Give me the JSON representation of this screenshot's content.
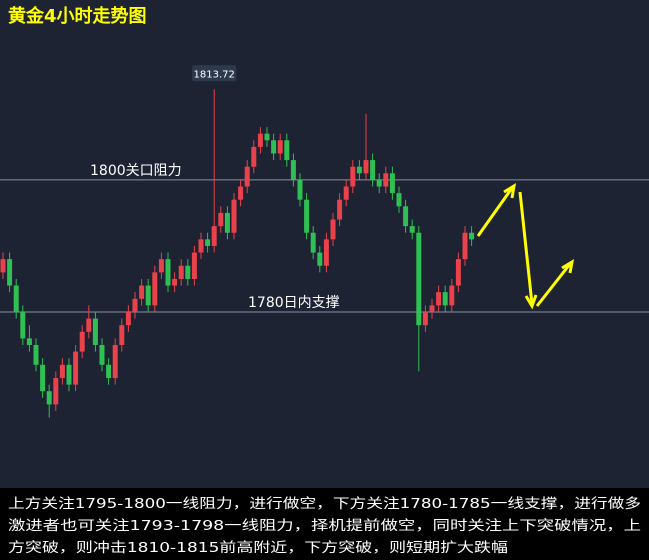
{
  "chart_data": {
    "type": "candlestick",
    "title": "黄金4小时走势图",
    "ylim": [
      1753.8,
      1822.7
    ],
    "up_color": "#e9424a",
    "down_color": "#2fbf52",
    "candles": [
      [
        1786,
        1789,
        1785,
        1788
      ],
      [
        1788,
        1789,
        1783,
        1784
      ],
      [
        1784,
        1785,
        1779,
        1780
      ],
      [
        1780,
        1781,
        1775,
        1776
      ],
      [
        1776,
        1778,
        1774,
        1775
      ],
      [
        1775,
        1776,
        1771,
        1772
      ],
      [
        1772,
        1773,
        1767,
        1768
      ],
      [
        1768,
        1769,
        1764,
        1766
      ],
      [
        1766,
        1771,
        1765,
        1770
      ],
      [
        1770,
        1773,
        1769,
        1772
      ],
      [
        1772,
        1773,
        1768,
        1769
      ],
      [
        1769,
        1775,
        1768,
        1774
      ],
      [
        1774,
        1778,
        1773,
        1777
      ],
      [
        1777,
        1781,
        1776,
        1779
      ],
      [
        1779,
        1780,
        1774,
        1775
      ],
      [
        1775,
        1776,
        1771,
        1772
      ],
      [
        1772,
        1773,
        1769,
        1770
      ],
      [
        1770,
        1776,
        1769,
        1775
      ],
      [
        1775,
        1779,
        1774,
        1778
      ],
      [
        1778,
        1781,
        1777,
        1780
      ],
      [
        1780,
        1783,
        1779,
        1782
      ],
      [
        1782,
        1785,
        1781,
        1784
      ],
      [
        1784,
        1785,
        1780,
        1781
      ],
      [
        1781,
        1787,
        1780,
        1786
      ],
      [
        1786,
        1789,
        1785,
        1788
      ],
      [
        1788,
        1789,
        1783,
        1784
      ],
      [
        1784,
        1786,
        1783,
        1785
      ],
      [
        1785,
        1788,
        1784,
        1787
      ],
      [
        1787,
        1788,
        1784,
        1785
      ],
      [
        1785,
        1790,
        1784,
        1789
      ],
      [
        1789,
        1792,
        1788,
        1791
      ],
      [
        1791,
        1792,
        1789,
        1790
      ],
      [
        1790,
        1813.72,
        1789,
        1793
      ],
      [
        1793,
        1796,
        1792,
        1795
      ],
      [
        1795,
        1796,
        1791,
        1792
      ],
      [
        1792,
        1798,
        1791,
        1797
      ],
      [
        1797,
        1800,
        1796,
        1799
      ],
      [
        1799,
        1803,
        1798,
        1802
      ],
      [
        1802,
        1806,
        1801,
        1805
      ],
      [
        1805,
        1808,
        1804,
        1807
      ],
      [
        1807,
        1808,
        1805,
        1806
      ],
      [
        1806,
        1807,
        1803,
        1804
      ],
      [
        1804,
        1807,
        1803,
        1806
      ],
      [
        1806,
        1807,
        1802,
        1803
      ],
      [
        1803,
        1804,
        1799,
        1800
      ],
      [
        1800,
        1801,
        1796,
        1797
      ],
      [
        1797,
        1798,
        1791,
        1792
      ],
      [
        1792,
        1793,
        1788,
        1789
      ],
      [
        1789,
        1790,
        1786,
        1787
      ],
      [
        1787,
        1792,
        1786,
        1791
      ],
      [
        1791,
        1795,
        1790,
        1794
      ],
      [
        1794,
        1798,
        1793,
        1797
      ],
      [
        1797,
        1800,
        1796,
        1799
      ],
      [
        1799,
        1803,
        1798,
        1802
      ],
      [
        1802,
        1803,
        1800,
        1801
      ],
      [
        1801,
        1810,
        1800,
        1803
      ],
      [
        1803,
        1804,
        1799,
        1800
      ],
      [
        1800,
        1801,
        1798,
        1799
      ],
      [
        1799,
        1802,
        1798,
        1801
      ],
      [
        1801,
        1802,
        1797,
        1798
      ],
      [
        1798,
        1799,
        1795,
        1796
      ],
      [
        1796,
        1797,
        1792,
        1793
      ],
      [
        1793,
        1794,
        1791,
        1792
      ],
      [
        1792,
        1793,
        1771,
        1778
      ],
      [
        1778,
        1781,
        1777,
        1780
      ],
      [
        1780,
        1782,
        1779,
        1781
      ],
      [
        1781,
        1784,
        1780,
        1783
      ],
      [
        1783,
        1784,
        1780,
        1781
      ],
      [
        1781,
        1785,
        1780,
        1784
      ],
      [
        1784,
        1789,
        1783,
        1788
      ],
      [
        1788,
        1793,
        1787,
        1792
      ],
      [
        1792,
        1793,
        1790,
        1791
      ]
    ],
    "levels": [
      {
        "value": 1800,
        "label": "1800关口阻力"
      },
      {
        "value": 1780,
        "label": "1780日内支撑"
      }
    ],
    "commentary": [
      "上方关注1795-1800一线阻力，进行做空，下方关注1780-1785一线支撑，进行做多",
      "激进者也可关注1793-1798一线阻力，择机提前做空，同时关注上下突破情况，上",
      "方突破，则冲击1810-1815前高附近，下方突破，则短期扩大跌幅"
    ]
  }
}
